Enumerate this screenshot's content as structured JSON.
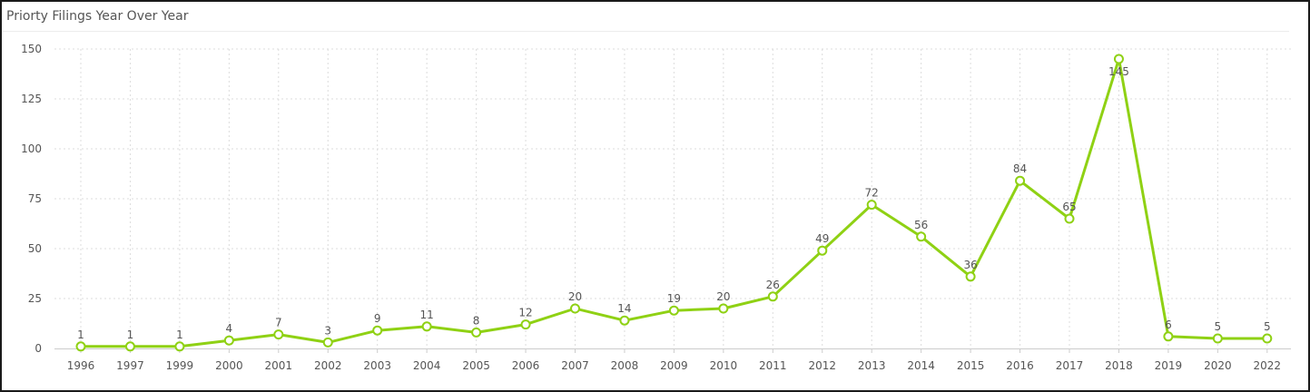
{
  "title": "Priorty Filings Year Over Year",
  "colors": {
    "line": "#8fd114",
    "grid": "#dcdcdc",
    "axis": "#cccccc",
    "text": "#555555"
  },
  "chart_data": {
    "type": "line",
    "categories": [
      "1996",
      "1997",
      "1999",
      "2000",
      "2001",
      "2002",
      "2003",
      "2004",
      "2005",
      "2006",
      "2007",
      "2008",
      "2009",
      "2010",
      "2011",
      "2012",
      "2013",
      "2014",
      "2015",
      "2016",
      "2017",
      "2018",
      "2019",
      "2020",
      "2022"
    ],
    "series": [
      {
        "values": [
          1,
          1,
          1,
          4,
          7,
          3,
          9,
          11,
          8,
          12,
          20,
          14,
          19,
          20,
          26,
          49,
          72,
          56,
          36,
          84,
          65,
          145,
          6,
          5,
          5
        ]
      }
    ],
    "y_ticks": [
      "0",
      "25",
      "50",
      "75",
      "100",
      "125",
      "150"
    ],
    "ylim": [
      0,
      150
    ],
    "grid": true,
    "data_labels": true,
    "marker": "hollow-circle"
  }
}
